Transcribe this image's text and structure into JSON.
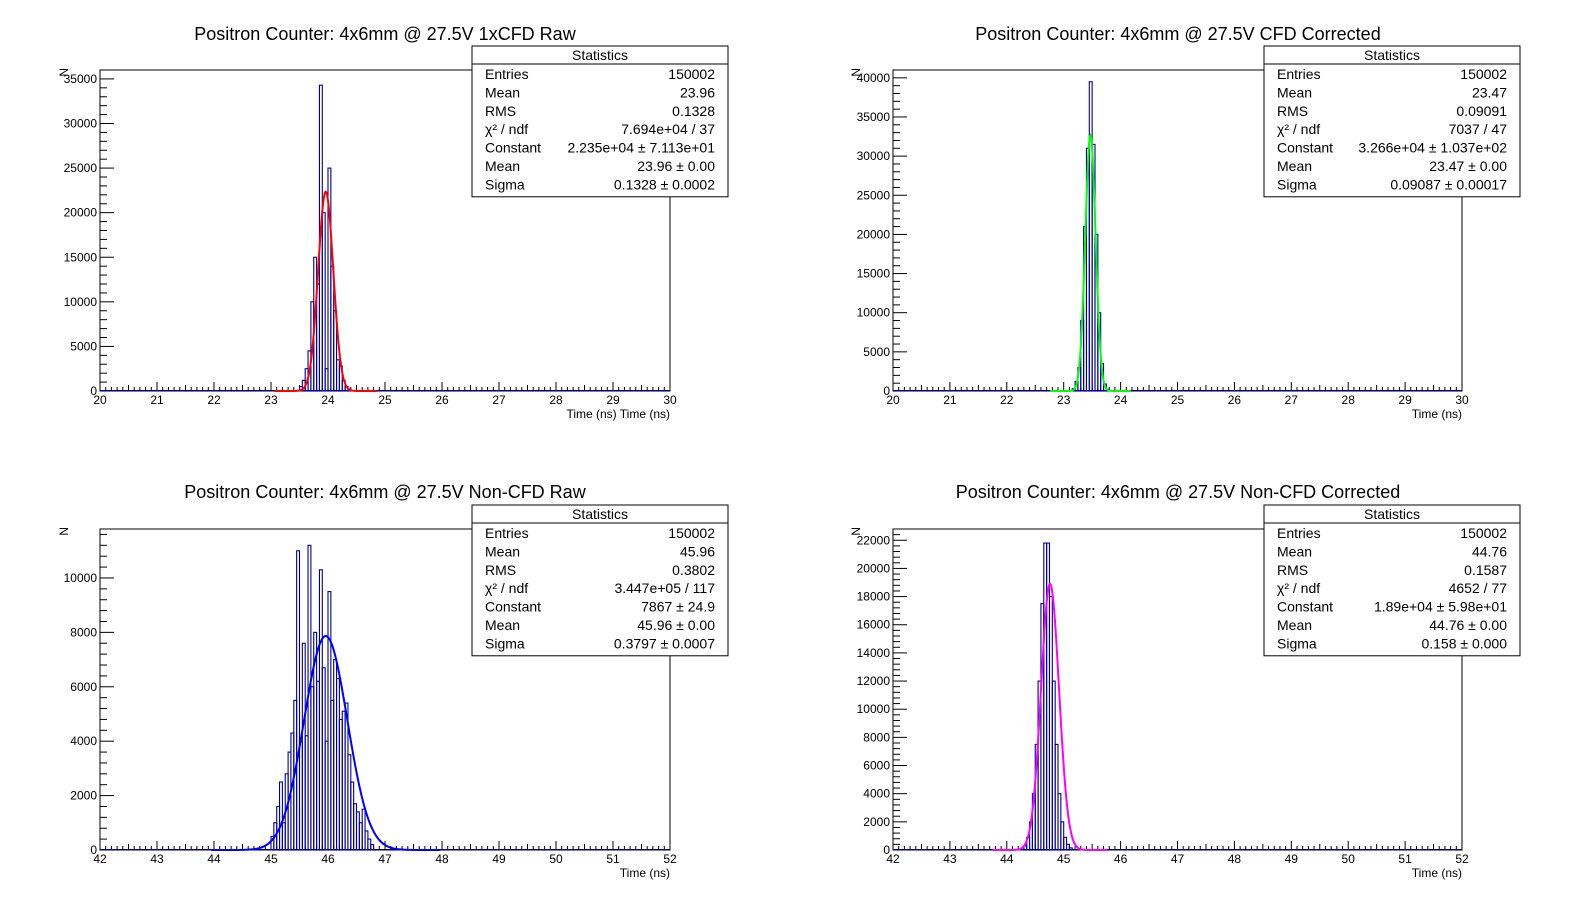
{
  "colors": {
    "histogram": "#000099",
    "axis": "#000000",
    "stats_border": "#000000"
  },
  "chart_data": [
    {
      "type": "histogram",
      "title": "Positron Counter: 4x6mm @ 27.5V 1xCFD Raw",
      "xlabel": "Time (ns) Time (ns)",
      "ylabel": "N",
      "xlim": [
        20,
        30
      ],
      "ylim": [
        0,
        36000
      ],
      "xticks": [
        "20",
        "21",
        "22",
        "23",
        "24",
        "25",
        "26",
        "27",
        "28",
        "29",
        "30"
      ],
      "yticks": [
        "0",
        "5000",
        "10000",
        "15000",
        "20000",
        "25000",
        "30000",
        "35000"
      ],
      "fit": {
        "type": "gaussian",
        "color": "#ff0000",
        "constant": 22350,
        "mean": 23.96,
        "sigma": 0.1328
      },
      "histogram": {
        "bin_width": 0.05,
        "bins": [
          {
            "x": 23.5,
            "y": 500
          },
          {
            "x": 23.55,
            "y": 1200
          },
          {
            "x": 23.6,
            "y": 2500
          },
          {
            "x": 23.65,
            "y": 4500
          },
          {
            "x": 23.7,
            "y": 10000
          },
          {
            "x": 23.75,
            "y": 15000
          },
          {
            "x": 23.8,
            "y": 12000
          },
          {
            "x": 23.85,
            "y": 34300
          },
          {
            "x": 23.9,
            "y": 20000
          },
          {
            "x": 23.95,
            "y": 2500
          },
          {
            "x": 24.0,
            "y": 25000
          },
          {
            "x": 24.05,
            "y": 14000
          },
          {
            "x": 24.1,
            "y": 9000
          },
          {
            "x": 24.15,
            "y": 3500
          },
          {
            "x": 24.2,
            "y": 2800
          },
          {
            "x": 24.25,
            "y": 1200
          },
          {
            "x": 24.3,
            "y": 500
          },
          {
            "x": 24.35,
            "y": 200
          }
        ]
      },
      "stats": {
        "title": "Statistics",
        "rows": [
          {
            "label": "Entries",
            "value": "150002"
          },
          {
            "label": "Mean",
            "value": "23.96"
          },
          {
            "label": "RMS",
            "value": "0.1328"
          },
          {
            "label": "χ² / ndf",
            "value": "7.694e+04 / 37"
          },
          {
            "label": "Constant",
            "value": "2.235e+04 ± 7.113e+01"
          },
          {
            "label": "Mean",
            "value": "23.96 ± 0.00"
          },
          {
            "label": "Sigma",
            "value": "0.1328 ± 0.0002"
          }
        ]
      }
    },
    {
      "type": "histogram",
      "title": "Positron Counter: 4x6mm @ 27.5V CFD Corrected",
      "xlabel": "Time (ns)",
      "ylabel": "N",
      "xlim": [
        20,
        30
      ],
      "ylim": [
        0,
        41000
      ],
      "xticks": [
        "20",
        "21",
        "22",
        "23",
        "24",
        "25",
        "26",
        "27",
        "28",
        "29",
        "30"
      ],
      "yticks": [
        "0",
        "5000",
        "10000",
        "15000",
        "20000",
        "25000",
        "30000",
        "35000",
        "40000"
      ],
      "fit": {
        "type": "gaussian",
        "color": "#00ff00",
        "constant": 32660,
        "mean": 23.47,
        "sigma": 0.09087
      },
      "histogram": {
        "bin_width": 0.05,
        "bins": [
          {
            "x": 23.15,
            "y": 300
          },
          {
            "x": 23.2,
            "y": 1200
          },
          {
            "x": 23.25,
            "y": 3000
          },
          {
            "x": 23.3,
            "y": 9000
          },
          {
            "x": 23.35,
            "y": 21000
          },
          {
            "x": 23.4,
            "y": 31000
          },
          {
            "x": 23.45,
            "y": 39500
          },
          {
            "x": 23.5,
            "y": 31500
          },
          {
            "x": 23.55,
            "y": 20000
          },
          {
            "x": 23.6,
            "y": 10000
          },
          {
            "x": 23.65,
            "y": 3500
          },
          {
            "x": 23.7,
            "y": 900
          },
          {
            "x": 23.75,
            "y": 200
          }
        ]
      },
      "stats": {
        "title": "Statistics",
        "rows": [
          {
            "label": "Entries",
            "value": "150002"
          },
          {
            "label": "Mean",
            "value": "23.47"
          },
          {
            "label": "RMS",
            "value": "0.09091"
          },
          {
            "label": "χ² / ndf",
            "value": "7037 / 47"
          },
          {
            "label": "Constant",
            "value": "3.266e+04 ± 1.037e+02"
          },
          {
            "label": "Mean",
            "value": "23.47 ± 0.00"
          },
          {
            "label": "Sigma",
            "value": "0.09087 ± 0.00017"
          }
        ]
      }
    },
    {
      "type": "histogram",
      "title": "Positron Counter: 4x6mm @ 27.5V Non-CFD Raw",
      "xlabel": "Time (ns)",
      "ylabel": "N",
      "xlim": [
        42,
        52
      ],
      "ylim": [
        0,
        11800
      ],
      "xticks": [
        "42",
        "43",
        "44",
        "45",
        "46",
        "47",
        "48",
        "49",
        "50",
        "51",
        "52"
      ],
      "yticks": [
        "0",
        "2000",
        "4000",
        "6000",
        "8000",
        "10000"
      ],
      "fit": {
        "type": "gaussian",
        "color": "#0000ff",
        "constant": 7867,
        "mean": 45.96,
        "sigma": 0.3797
      },
      "histogram": {
        "bin_width": 0.05,
        "bins": [
          {
            "x": 45.0,
            "y": 500
          },
          {
            "x": 45.05,
            "y": 1000
          },
          {
            "x": 45.1,
            "y": 1600
          },
          {
            "x": 45.15,
            "y": 2500
          },
          {
            "x": 45.2,
            "y": 1000
          },
          {
            "x": 45.25,
            "y": 2800
          },
          {
            "x": 45.3,
            "y": 3600
          },
          {
            "x": 45.35,
            "y": 4300
          },
          {
            "x": 45.4,
            "y": 5500
          },
          {
            "x": 45.45,
            "y": 11000
          },
          {
            "x": 45.5,
            "y": 4000
          },
          {
            "x": 45.55,
            "y": 7600
          },
          {
            "x": 45.6,
            "y": 4200
          },
          {
            "x": 45.65,
            "y": 11200
          },
          {
            "x": 45.7,
            "y": 6000
          },
          {
            "x": 45.75,
            "y": 8000
          },
          {
            "x": 45.8,
            "y": 6200
          },
          {
            "x": 45.85,
            "y": 10300
          },
          {
            "x": 45.9,
            "y": 6700
          },
          {
            "x": 45.95,
            "y": 4000
          },
          {
            "x": 46.0,
            "y": 9500
          },
          {
            "x": 46.05,
            "y": 5500
          },
          {
            "x": 46.1,
            "y": 7000
          },
          {
            "x": 46.15,
            "y": 6300
          },
          {
            "x": 46.2,
            "y": 4800
          },
          {
            "x": 46.25,
            "y": 5100
          },
          {
            "x": 46.3,
            "y": 5400
          },
          {
            "x": 46.35,
            "y": 3500
          },
          {
            "x": 46.4,
            "y": 2500
          },
          {
            "x": 46.45,
            "y": 1700
          },
          {
            "x": 46.5,
            "y": 1400
          },
          {
            "x": 46.55,
            "y": 1000
          },
          {
            "x": 46.6,
            "y": 1500
          },
          {
            "x": 46.65,
            "y": 700
          },
          {
            "x": 46.7,
            "y": 400
          },
          {
            "x": 46.75,
            "y": 200
          }
        ]
      },
      "stats": {
        "title": "Statistics",
        "rows": [
          {
            "label": "Entries",
            "value": "150002"
          },
          {
            "label": "Mean",
            "value": "45.96"
          },
          {
            "label": "RMS",
            "value": "0.3802"
          },
          {
            "label": "χ² / ndf",
            "value": "3.447e+05 / 117"
          },
          {
            "label": "Constant",
            "value": "7867 ± 24.9"
          },
          {
            "label": "Mean",
            "value": "45.96 ± 0.00"
          },
          {
            "label": "Sigma",
            "value": "0.3797 ± 0.0007"
          }
        ]
      }
    },
    {
      "type": "histogram",
      "title": "Positron Counter: 4x6mm @ 27.5V Non-CFD Corrected",
      "xlabel": "Time (ns)",
      "ylabel": "N",
      "xlim": [
        42,
        52
      ],
      "ylim": [
        0,
        22800
      ],
      "xticks": [
        "42",
        "43",
        "44",
        "45",
        "46",
        "47",
        "48",
        "49",
        "50",
        "51",
        "52"
      ],
      "yticks": [
        "0",
        "2000",
        "4000",
        "6000",
        "8000",
        "10000",
        "12000",
        "14000",
        "16000",
        "18000",
        "20000",
        "22000"
      ],
      "fit": {
        "type": "gaussian",
        "color": "#ff00ff",
        "constant": 18900,
        "mean": 44.76,
        "sigma": 0.158
      },
      "histogram": {
        "bin_width": 0.05,
        "bins": [
          {
            "x": 44.3,
            "y": 300
          },
          {
            "x": 44.35,
            "y": 900
          },
          {
            "x": 44.4,
            "y": 2000
          },
          {
            "x": 44.45,
            "y": 4000
          },
          {
            "x": 44.5,
            "y": 7500
          },
          {
            "x": 44.55,
            "y": 12000
          },
          {
            "x": 44.6,
            "y": 17500
          },
          {
            "x": 44.65,
            "y": 21800
          },
          {
            "x": 44.7,
            "y": 21800
          },
          {
            "x": 44.75,
            "y": 18000
          },
          {
            "x": 44.8,
            "y": 12000
          },
          {
            "x": 44.85,
            "y": 7500
          },
          {
            "x": 44.9,
            "y": 4000
          },
          {
            "x": 44.95,
            "y": 2000
          },
          {
            "x": 45.0,
            "y": 900
          },
          {
            "x": 45.05,
            "y": 400
          },
          {
            "x": 45.1,
            "y": 150
          }
        ]
      },
      "stats": {
        "title": "Statistics",
        "rows": [
          {
            "label": "Entries",
            "value": "150002"
          },
          {
            "label": "Mean",
            "value": "44.76"
          },
          {
            "label": "RMS",
            "value": "0.1587"
          },
          {
            "label": "χ² / ndf",
            "value": "4652 / 77"
          },
          {
            "label": "Constant",
            "value": "1.89e+04 ± 5.98e+01"
          },
          {
            "label": "Mean",
            "value": "44.76 ± 0.00"
          },
          {
            "label": "Sigma",
            "value": "0.158 ± 0.000"
          }
        ]
      }
    }
  ]
}
